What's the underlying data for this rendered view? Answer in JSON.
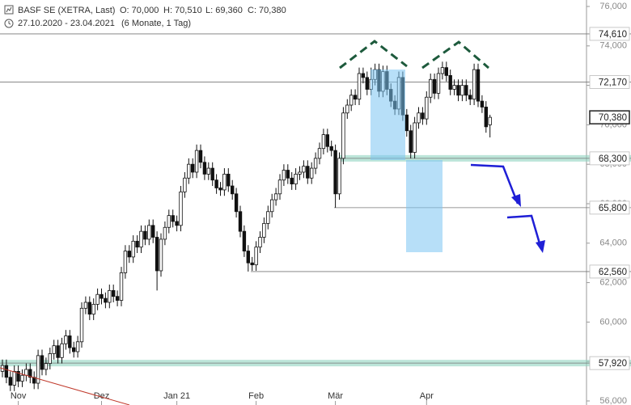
{
  "header": {
    "title": "BASF SE (XETRA, Last)",
    "open": "O: 70,000",
    "high": "H: 70,510",
    "low": "L: 69,360",
    "close": "C: 70,380",
    "range": "27.10.2020 - 23.04.2021",
    "period": "(6 Monate, 1 Tag)"
  },
  "chart_data": {
    "type": "candlestick",
    "ohlc": [
      [
        57.5,
        58.1,
        57.2,
        57.8
      ],
      [
        57.8,
        58.1,
        56.9,
        57.2
      ],
      [
        57.2,
        57.5,
        56.5,
        56.8
      ],
      [
        56.8,
        57.8,
        56.5,
        57.5
      ],
      [
        57.5,
        57.8,
        56.7,
        57.0
      ],
      [
        57.0,
        57.6,
        56.7,
        57.3
      ],
      [
        57.3,
        57.9,
        57.0,
        57.6
      ],
      [
        57.6,
        57.9,
        56.9,
        57.2
      ],
      [
        57.2,
        57.5,
        56.6,
        56.9
      ],
      [
        56.9,
        58.6,
        56.6,
        58.3
      ],
      [
        58.3,
        58.6,
        57.3,
        57.6
      ],
      [
        57.6,
        58.2,
        57.3,
        57.9
      ],
      [
        57.9,
        58.7,
        57.6,
        58.4
      ],
      [
        58.4,
        59.1,
        58.1,
        58.8
      ],
      [
        58.8,
        59.1,
        57.9,
        58.2
      ],
      [
        58.2,
        59.2,
        57.9,
        58.9
      ],
      [
        58.9,
        59.6,
        58.6,
        59.3
      ],
      [
        59.3,
        59.6,
        58.4,
        58.7
      ],
      [
        58.7,
        59.0,
        58.2,
        58.5
      ],
      [
        58.5,
        59.3,
        58.2,
        59.0
      ],
      [
        59.0,
        61.0,
        58.7,
        60.7
      ],
      [
        60.7,
        61.3,
        60.4,
        61.0
      ],
      [
        61.0,
        61.3,
        60.1,
        60.4
      ],
      [
        60.4,
        61.2,
        60.1,
        60.9
      ],
      [
        60.9,
        61.7,
        60.6,
        61.4
      ],
      [
        61.4,
        61.7,
        60.9,
        61.2
      ],
      [
        61.2,
        61.5,
        60.7,
        61.0
      ],
      [
        61.0,
        61.9,
        60.7,
        61.6
      ],
      [
        61.6,
        61.9,
        61.0,
        61.3
      ],
      [
        61.3,
        61.6,
        60.8,
        61.1
      ],
      [
        61.1,
        62.8,
        60.8,
        62.5
      ],
      [
        62.5,
        63.9,
        62.2,
        63.6
      ],
      [
        63.6,
        63.9,
        63.0,
        63.3
      ],
      [
        63.3,
        64.4,
        63.0,
        64.1
      ],
      [
        64.1,
        64.4,
        63.5,
        63.8
      ],
      [
        63.8,
        64.9,
        63.5,
        64.6
      ],
      [
        64.6,
        64.9,
        63.9,
        64.2
      ],
      [
        64.2,
        65.2,
        63.9,
        64.9
      ],
      [
        64.9,
        65.2,
        64.0,
        64.3
      ],
      [
        64.3,
        64.6,
        61.6,
        62.6
      ],
      [
        62.6,
        64.5,
        62.3,
        64.2
      ],
      [
        64.2,
        65.1,
        63.9,
        64.8
      ],
      [
        64.8,
        65.7,
        64.5,
        65.4
      ],
      [
        65.4,
        65.7,
        64.8,
        65.1
      ],
      [
        65.1,
        65.4,
        64.6,
        64.9
      ],
      [
        64.9,
        66.9,
        64.6,
        66.6
      ],
      [
        66.6,
        67.6,
        66.3,
        67.3
      ],
      [
        67.3,
        68.3,
        67.0,
        68.0
      ],
      [
        68.0,
        68.3,
        67.3,
        67.6
      ],
      [
        67.6,
        69.0,
        67.3,
        68.7
      ],
      [
        68.7,
        69.0,
        67.8,
        68.1
      ],
      [
        68.1,
        68.4,
        67.2,
        67.5
      ],
      [
        67.5,
        68.1,
        67.2,
        67.8
      ],
      [
        67.8,
        68.1,
        66.9,
        67.2
      ],
      [
        67.2,
        67.5,
        66.5,
        66.8
      ],
      [
        66.8,
        67.1,
        66.4,
        66.7
      ],
      [
        66.7,
        67.8,
        66.4,
        67.5
      ],
      [
        67.5,
        67.8,
        66.6,
        66.9
      ],
      [
        66.9,
        67.2,
        66.2,
        66.5
      ],
      [
        66.5,
        66.8,
        65.3,
        65.6
      ],
      [
        65.6,
        65.9,
        64.3,
        64.6
      ],
      [
        64.6,
        64.9,
        63.3,
        63.6
      ],
      [
        63.6,
        63.9,
        62.56,
        63.0
      ],
      [
        63.0,
        63.3,
        62.6,
        62.9
      ],
      [
        62.9,
        64.1,
        62.6,
        63.8
      ],
      [
        63.8,
        64.6,
        63.5,
        64.3
      ],
      [
        64.3,
        65.3,
        64.0,
        65.0
      ],
      [
        65.0,
        65.9,
        64.7,
        65.6
      ],
      [
        65.6,
        66.5,
        65.3,
        66.2
      ],
      [
        66.2,
        66.8,
        65.9,
        66.5
      ],
      [
        66.5,
        67.5,
        66.2,
        67.2
      ],
      [
        67.2,
        68.0,
        66.9,
        67.7
      ],
      [
        67.7,
        68.0,
        67.0,
        67.3
      ],
      [
        67.3,
        67.6,
        66.7,
        67.0
      ],
      [
        67.0,
        67.8,
        66.7,
        67.5
      ],
      [
        67.5,
        67.9,
        67.2,
        67.6
      ],
      [
        67.6,
        68.2,
        67.3,
        67.9
      ],
      [
        67.9,
        68.2,
        67.0,
        67.3
      ],
      [
        67.3,
        68.1,
        67.0,
        67.8
      ],
      [
        67.8,
        68.6,
        67.5,
        68.3
      ],
      [
        68.3,
        69.1,
        68.0,
        68.8
      ],
      [
        68.8,
        69.8,
        68.5,
        69.5
      ],
      [
        69.5,
        69.8,
        68.6,
        68.9
      ],
      [
        68.9,
        69.2,
        68.4,
        68.7
      ],
      [
        68.7,
        69.0,
        65.8,
        66.5
      ],
      [
        66.5,
        68.6,
        66.2,
        68.3
      ],
      [
        68.3,
        70.9,
        68.0,
        70.6
      ],
      [
        70.6,
        71.3,
        70.3,
        71.0
      ],
      [
        71.0,
        71.8,
        70.7,
        71.5
      ],
      [
        71.5,
        71.8,
        71.0,
        71.3
      ],
      [
        71.3,
        72.9,
        71.0,
        72.6
      ],
      [
        72.6,
        72.9,
        72.1,
        72.4
      ],
      [
        72.4,
        72.7,
        71.5,
        71.8
      ],
      [
        71.8,
        72.9,
        71.5,
        72.3
      ],
      [
        72.3,
        73.1,
        72.0,
        72.8
      ],
      [
        72.8,
        73.1,
        71.4,
        71.7
      ],
      [
        71.7,
        73.0,
        71.4,
        72.7
      ],
      [
        72.7,
        73.0,
        71.5,
        71.8
      ],
      [
        71.8,
        72.1,
        70.9,
        71.2
      ],
      [
        71.2,
        71.5,
        70.5,
        70.8
      ],
      [
        70.8,
        72.7,
        70.5,
        72.4
      ],
      [
        72.4,
        72.7,
        70.2,
        70.5
      ],
      [
        70.5,
        70.8,
        69.4,
        69.7
      ],
      [
        69.7,
        70.0,
        68.3,
        68.6
      ],
      [
        68.6,
        70.4,
        68.3,
        70.1
      ],
      [
        70.1,
        70.9,
        69.8,
        70.6
      ],
      [
        70.6,
        70.9,
        70.0,
        70.3
      ],
      [
        70.3,
        71.7,
        70.0,
        71.4
      ],
      [
        71.4,
        72.6,
        71.1,
        72.3
      ],
      [
        72.3,
        72.6,
        71.3,
        71.6
      ],
      [
        71.6,
        72.9,
        71.3,
        72.6
      ],
      [
        72.6,
        73.2,
        72.3,
        72.9
      ],
      [
        72.9,
        73.2,
        72.2,
        72.5
      ],
      [
        72.5,
        72.8,
        71.5,
        71.8
      ],
      [
        71.8,
        72.3,
        71.5,
        72.0
      ],
      [
        72.0,
        72.3,
        71.2,
        71.5
      ],
      [
        71.5,
        72.3,
        71.2,
        72.0
      ],
      [
        72.0,
        72.3,
        71.2,
        71.5
      ],
      [
        71.5,
        71.8,
        71.0,
        71.3
      ],
      [
        71.3,
        73.1,
        71.0,
        72.8
      ],
      [
        72.8,
        73.1,
        70.9,
        71.2
      ],
      [
        71.2,
        71.5,
        70.6,
        70.9
      ],
      [
        70.9,
        71.2,
        69.6,
        69.9
      ],
      [
        70.0,
        70.51,
        69.36,
        70.38
      ]
    ],
    "xticks": [
      {
        "value": 4,
        "label": "Nov"
      },
      {
        "value": 25,
        "label": "Dez"
      },
      {
        "value": 44,
        "label": "Jan 21"
      },
      {
        "value": 64,
        "label": "Feb"
      },
      {
        "value": 84,
        "label": "Mär"
      },
      {
        "value": 107,
        "label": "Apr"
      }
    ],
    "ylim": [
      56,
      76
    ],
    "yticks": [
      {
        "value": 56,
        "label": "56,000"
      },
      {
        "value": 58,
        "label": "58,000"
      },
      {
        "value": 60,
        "label": "60,000"
      },
      {
        "value": 62,
        "label": "62,000"
      },
      {
        "value": 64,
        "label": "64,000"
      },
      {
        "value": 66,
        "label": "66,000"
      },
      {
        "value": 68,
        "label": "68,000"
      },
      {
        "value": 70,
        "label": "70,000"
      },
      {
        "value": 72,
        "label": "72,000"
      },
      {
        "value": 74,
        "label": "74,000"
      },
      {
        "value": 76,
        "label": "76,000"
      }
    ],
    "levels": [
      {
        "value": 74.61,
        "label": "74,610"
      },
      {
        "value": 72.17,
        "label": "72,170"
      },
      {
        "value": 70.38,
        "label": "70,380"
      },
      {
        "value": 68.3,
        "label": "68,300"
      },
      {
        "value": 65.8,
        "label": "65,800"
      },
      {
        "value": 62.56,
        "label": "62,560"
      },
      {
        "value": 57.92,
        "label": "57,920"
      }
    ]
  }
}
